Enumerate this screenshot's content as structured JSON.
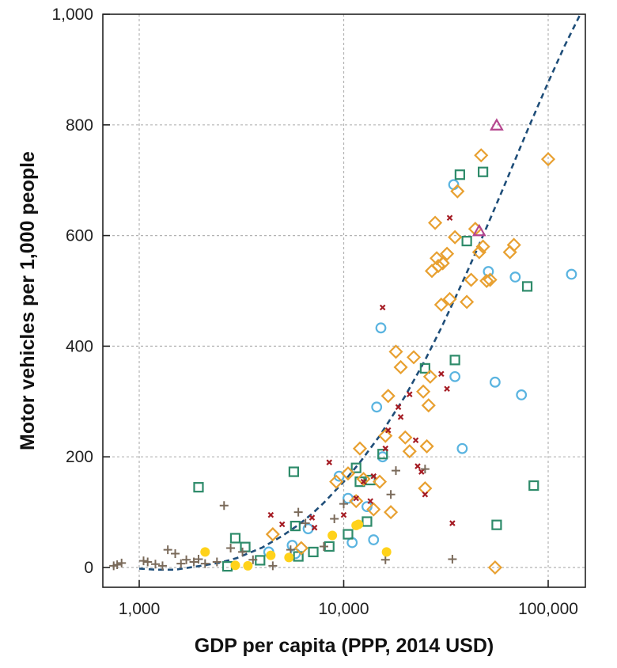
{
  "chart_data": {
    "type": "scatter",
    "xlabel": "GDP per capita (PPP, 2014 USD)",
    "ylabel": "Motor vehicles per 1,000 people",
    "xscale": "log",
    "xlim": [
      700,
      150000
    ],
    "ylim": [
      -35,
      1000
    ],
    "grid": true,
    "legend": "none",
    "x_ticks": [
      {
        "value": 1000,
        "label": "1,000"
      },
      {
        "value": 10000,
        "label": "10,000"
      },
      {
        "value": 100000,
        "label": "100,000"
      }
    ],
    "y_ticks": [
      {
        "value": 0,
        "label": "0"
      },
      {
        "value": 200,
        "label": "200"
      },
      {
        "value": 400,
        "label": "400"
      },
      {
        "value": 600,
        "label": "600"
      },
      {
        "value": 800,
        "label": "800"
      },
      {
        "value": 1000,
        "label": "1,000"
      }
    ],
    "trend": {
      "style": "dashed",
      "color": "#1f4e79",
      "x": [
        1000,
        1200,
        1500,
        2000,
        2500,
        3000,
        4000,
        5000,
        6000,
        7000,
        8000,
        10000,
        12000,
        15000,
        20000,
        25000,
        30000,
        35000,
        40000,
        45000,
        50000,
        60000,
        70000,
        80000,
        100000,
        120000,
        150000
      ],
      "y": [
        -2,
        -4,
        -4,
        3,
        9,
        17,
        36,
        57,
        77,
        97,
        117,
        155,
        190,
        238,
        310,
        375,
        433,
        486,
        533,
        576,
        615,
        684,
        743,
        794,
        877,
        942,
        1014
      ]
    },
    "series": [
      {
        "marker": "circle-open",
        "color": "#5ab4e0",
        "x": [
          4300,
          5600,
          5800,
          6700,
          9500,
          10500,
          11000,
          13000,
          14000,
          14500,
          15200,
          15500,
          34500,
          35000,
          38000,
          51000,
          55000,
          69000,
          74000,
          130000
        ],
        "y": [
          28,
          40,
          25,
          70,
          165,
          125,
          45,
          110,
          50,
          290,
          433,
          200,
          692,
          345,
          215,
          535,
          335,
          525,
          312,
          530
        ]
      },
      {
        "marker": "square-open",
        "color": "#2e8b6a",
        "x": [
          1950,
          2700,
          2950,
          3300,
          3900,
          5700,
          5800,
          6000,
          7100,
          8500,
          10500,
          11500,
          12000,
          13000,
          13500,
          15500,
          25000,
          35000,
          37000,
          40000,
          48000,
          56000,
          79000,
          85000
        ],
        "y": [
          145,
          2,
          53,
          37,
          13,
          173,
          75,
          20,
          28,
          38,
          60,
          180,
          155,
          83,
          158,
          205,
          360,
          375,
          710,
          590,
          715,
          77,
          508,
          148
        ]
      },
      {
        "marker": "diamond-open",
        "color": "#e8a030",
        "x": [
          4500,
          6200,
          9200,
          10500,
          11500,
          12000,
          12500,
          14000,
          15000,
          16000,
          16500,
          17000,
          18000,
          19000,
          20000,
          21000,
          22000,
          24500,
          25000,
          25500,
          26000,
          26500,
          27000,
          28000,
          28500,
          29000,
          30000,
          30500,
          32000,
          33000,
          35000,
          36000,
          40000,
          42000,
          44000,
          46000,
          47000,
          48000,
          50000,
          52000,
          55000,
          65000,
          68000,
          100000
        ],
        "y": [
          60,
          35,
          155,
          170,
          120,
          215,
          160,
          105,
          155,
          238,
          310,
          100,
          390,
          362,
          235,
          210,
          380,
          318,
          143,
          219,
          293,
          345,
          536,
          623,
          559,
          545,
          475,
          550,
          567,
          485,
          597,
          680,
          480,
          520,
          612,
          570,
          745,
          580,
          518,
          520,
          0,
          570,
          583,
          738
        ]
      },
      {
        "marker": "triangle-open",
        "color": "#b5468e",
        "x": [
          46000,
          56000
        ],
        "y": [
          608,
          799
        ]
      },
      {
        "marker": "cross",
        "color": "#a51c24",
        "x": [
          4400,
          5000,
          7000,
          7200,
          8500,
          10000,
          11500,
          12500,
          13500,
          14000,
          15500,
          16000,
          16500,
          18500,
          19000,
          21000,
          22500,
          23000,
          24000,
          25000,
          30000,
          32000,
          33000,
          34000
        ],
        "y": [
          95,
          78,
          90,
          72,
          190,
          95,
          125,
          155,
          120,
          165,
          470,
          215,
          248,
          290,
          272,
          313,
          230,
          183,
          173,
          132,
          350,
          323,
          632,
          80
        ]
      },
      {
        "marker": "plus",
        "color": "#7a6a5a",
        "x": [
          750,
          780,
          820,
          1050,
          1100,
          1200,
          1300,
          1380,
          1500,
          1600,
          1700,
          1850,
          1950,
          2100,
          2400,
          2600,
          2800,
          3200,
          3600,
          4500,
          5500,
          6000,
          6500,
          8000,
          9000,
          10000,
          16000,
          17000,
          18000,
          25000,
          34000
        ],
        "y": [
          3,
          5,
          8,
          12,
          10,
          6,
          3,
          32,
          25,
          7,
          14,
          10,
          15,
          7,
          10,
          112,
          35,
          28,
          14,
          3,
          32,
          100,
          80,
          38,
          88,
          115,
          14,
          132,
          175,
          178,
          15
        ]
      },
      {
        "marker": "circle-filled",
        "color": "#ffd21a",
        "x": [
          2100,
          2950,
          3400,
          4400,
          5400,
          8800,
          11500,
          11800,
          16200
        ],
        "y": [
          28,
          4,
          3,
          22,
          18,
          58,
          76,
          78,
          28
        ]
      }
    ]
  }
}
